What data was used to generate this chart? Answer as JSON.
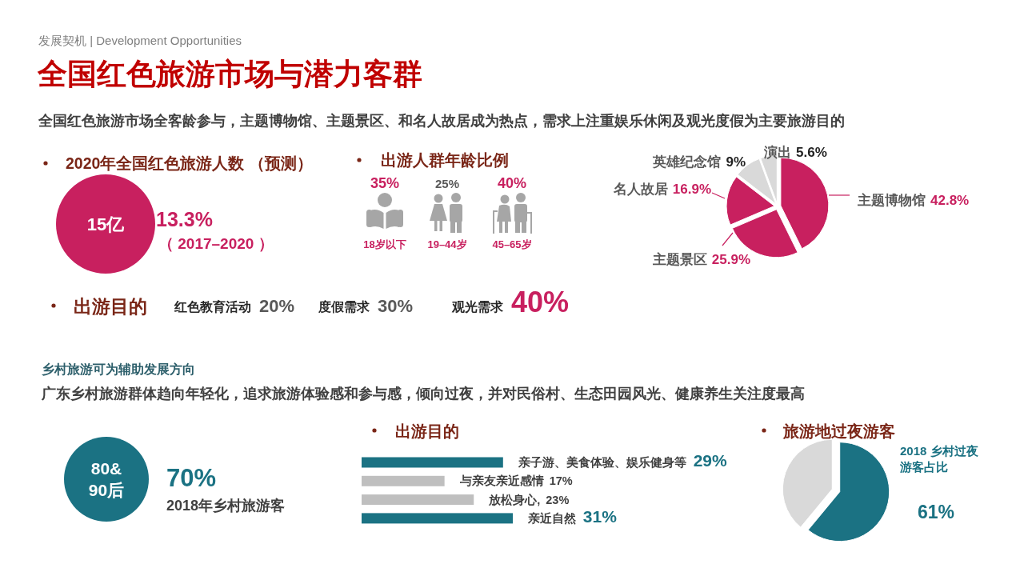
{
  "chart_data": [
    {
      "type": "other",
      "subtitle": "发展契机 | Development Opportunities",
      "title": "全国红色旅游市场与潜力客群",
      "annotations": [
        "全国红色旅游市场全客龄参与，主题博物馆、主题景区、和名人故居成为热点，需求上注重娱乐休闲及观光度假为主要旅游目的"
      ]
    },
    {
      "type": "other",
      "title": "2020年全国红色旅游人数 （预测）",
      "color": "#c8205f",
      "annotations": [
        "15亿",
        "13.3%",
        "（ 2017–2020 ）"
      ]
    },
    {
      "type": "other",
      "title": "出游人群年龄比例",
      "categories": [
        "18岁以下",
        "19–44岁",
        "45–65岁"
      ],
      "values": [
        35,
        25,
        40
      ],
      "value_labels": [
        "35%",
        "25%",
        "40%"
      ],
      "colors": [
        "#c8205f",
        "#595959",
        "#c8205f"
      ]
    },
    {
      "type": "pie",
      "categories": [
        "主题博物馆",
        "主题景区",
        "名人故居",
        "英雄纪念馆",
        "演出"
      ],
      "values": [
        42.8,
        25.9,
        16.9,
        9,
        5.6
      ],
      "value_labels": [
        "42.8%",
        "25.9%",
        "16.9%",
        "9%",
        "5.6%"
      ],
      "colors": [
        "#c8205f",
        "#c8205f",
        "#c8205f",
        "#d9d9d9",
        "#d9d9d9"
      ]
    },
    {
      "type": "other",
      "title": "出游目的",
      "categories": [
        "红色教育活动",
        "度假需求",
        "观光需求"
      ],
      "values": [
        20,
        30,
        40
      ],
      "value_labels": [
        "20%",
        "30%",
        "40%"
      ],
      "colors": [
        "#595959",
        "#595959",
        "#c8205f"
      ]
    },
    {
      "type": "other",
      "title": "乡村旅游可为辅助发展方向",
      "annotations": [
        "广东乡村旅游群体趋向年轻化，追求旅游体验感和参与感，倾向过夜，并对民俗村、生态田园风光、健康养生关注度最高"
      ]
    },
    {
      "type": "other",
      "color": "#1b7283",
      "annotations": [
        "80&90后",
        "70%",
        "2018年乡村旅游客"
      ]
    },
    {
      "type": "bar",
      "orientation": "horizontal",
      "title": "出游目的",
      "categories": [
        null,
        null,
        null,
        null
      ],
      "values": [
        29,
        17,
        23,
        31
      ],
      "value_labels": [
        "亲子游、美食体验、娱乐健身等 29%",
        "与亲友亲近感情 17%",
        "放松身心, 23%",
        "亲近自然 31%"
      ],
      "colors": [
        "#1b7283",
        "#bfbfbf",
        "#bfbfbf",
        "#1b7283"
      ]
    },
    {
      "type": "pie",
      "title": "旅游地过夜游客",
      "categories": [
        "2018 乡村过夜游客占比",
        null
      ],
      "values": [
        61,
        39
      ],
      "value_labels": [
        "61%",
        null
      ],
      "colors": [
        "#1b7283",
        "#d9d9d9"
      ]
    }
  ]
}
